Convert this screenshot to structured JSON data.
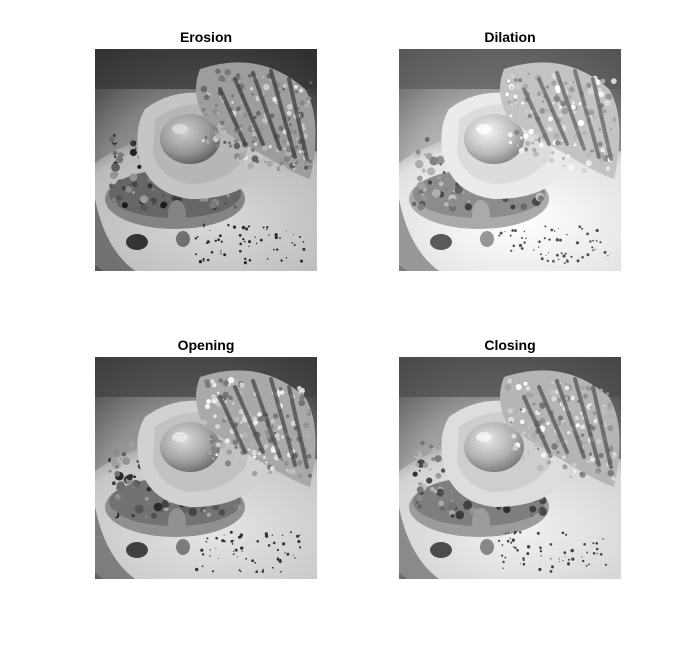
{
  "figure": {
    "subplots": [
      {
        "title": "Erosion",
        "image": "grayscale-food-photo-eroded"
      },
      {
        "title": "Dilation",
        "image": "grayscale-food-photo-dilated"
      },
      {
        "title": "Opening",
        "image": "grayscale-food-photo-opened"
      },
      {
        "title": "Closing",
        "image": "grayscale-food-photo-closed"
      }
    ],
    "colors": {
      "background": "#ffffff",
      "plate_dark": "#5f5f5f",
      "plate_light": "#d9d9d9"
    }
  }
}
